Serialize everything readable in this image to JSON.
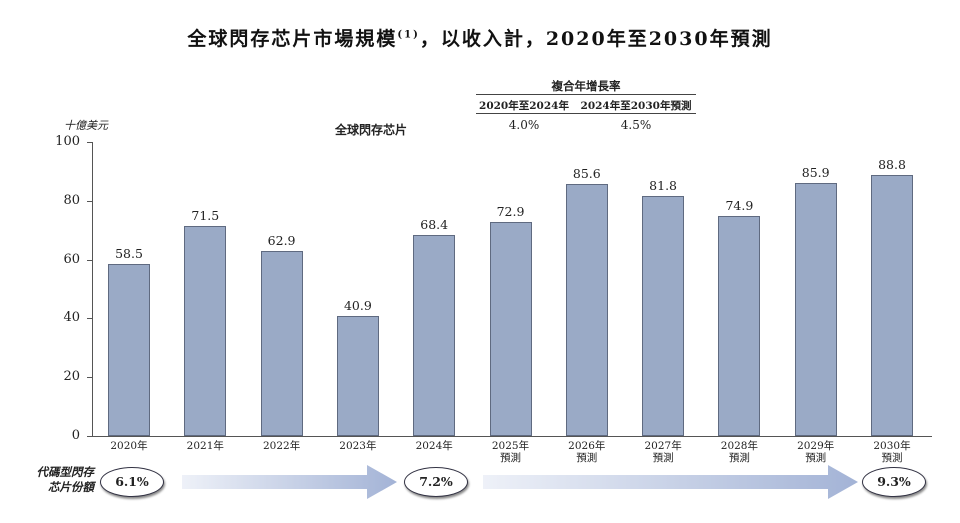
{
  "title": "全球閃存芯片市場規模",
  "title_sup": "(1)",
  "title_suffix": "，以收入計，2020年至2030年預測",
  "cagr": {
    "header": "複合年增長率",
    "columns": [
      {
        "label": "2020年至2024年",
        "value": "4.0%"
      },
      {
        "label": "2024年至2030年預測",
        "value": "4.5%"
      }
    ]
  },
  "unit_label": "十億美元",
  "series_label": "全球閃存芯片",
  "colors": {
    "bar": "#9aaac6",
    "bar_border": "#5f6a80",
    "arrow": "#a9b8d8"
  },
  "share": {
    "label_line1": "代碼型閃存",
    "label_line2": "芯片份額",
    "values": [
      "6.1%",
      "7.2%",
      "9.3%"
    ]
  },
  "chart_data": {
    "type": "bar",
    "title": "全球閃存芯片市場規模(1)，以收入計，2020年至2030年預測",
    "ylabel": "十億美元",
    "xlabel": "",
    "ylim": [
      0,
      100
    ],
    "yticks": [
      0,
      20,
      40,
      60,
      80,
      100
    ],
    "legend": [
      "全球閃存芯片"
    ],
    "categories": [
      "2020年",
      "2021年",
      "2022年",
      "2023年",
      "2024年",
      "2025年預測",
      "2026年預測",
      "2027年預測",
      "2028年預測",
      "2029年預測",
      "2030年預測"
    ],
    "series": [
      {
        "name": "全球閃存芯片",
        "values": [
          58.5,
          71.5,
          62.9,
          40.9,
          68.4,
          72.9,
          85.6,
          81.8,
          74.9,
          85.9,
          88.8
        ]
      }
    ],
    "value_labels": [
      "58.5",
      "71.5",
      "62.9",
      "40.9",
      "68.4",
      "72.9",
      "85.6",
      "81.8",
      "74.9",
      "85.9",
      "88.8"
    ],
    "x_labels": [
      {
        "year": "2020年",
        "sub": ""
      },
      {
        "year": "2021年",
        "sub": ""
      },
      {
        "year": "2022年",
        "sub": ""
      },
      {
        "year": "2023年",
        "sub": ""
      },
      {
        "year": "2024年",
        "sub": ""
      },
      {
        "year": "2025年",
        "sub": "預測"
      },
      {
        "year": "2026年",
        "sub": "預測"
      },
      {
        "year": "2027年",
        "sub": "預測"
      },
      {
        "year": "2028年",
        "sub": "預測"
      },
      {
        "year": "2029年",
        "sub": "預測"
      },
      {
        "year": "2030年",
        "sub": "預測"
      }
    ],
    "annotations": {
      "cagr_2020_2024": "4.0%",
      "cagr_2024_2030": "4.5%",
      "code_flash_share": {
        "2020": "6.1%",
        "2024": "7.2%",
        "2030": "9.3%"
      }
    }
  }
}
